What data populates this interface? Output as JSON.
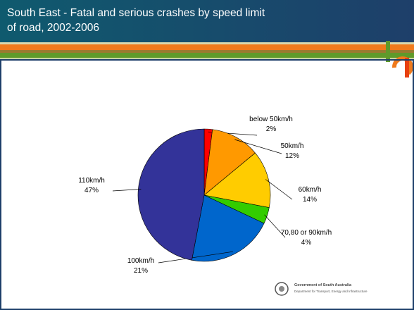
{
  "chart_data": {
    "type": "pie",
    "title": "South East  - Fatal and serious crashes by speed limit of road, 2002-2006",
    "categories": [
      "below 50km/h",
      "50km/h",
      "60km/h",
      "70,80 or 90km/h",
      "100km/h",
      "110km/h"
    ],
    "values": [
      2,
      12,
      14,
      4,
      21,
      47
    ],
    "value_labels": [
      "2%",
      "12%",
      "14%",
      "4%",
      "21%",
      "47%"
    ],
    "colors": [
      "#ff0000",
      "#ff9900",
      "#ffcc00",
      "#33cc00",
      "#0066cc",
      "#333399"
    ]
  },
  "footer": {
    "org": "Government of South Australia",
    "dept": "Department for Transport, Energy and Infrastructure"
  }
}
